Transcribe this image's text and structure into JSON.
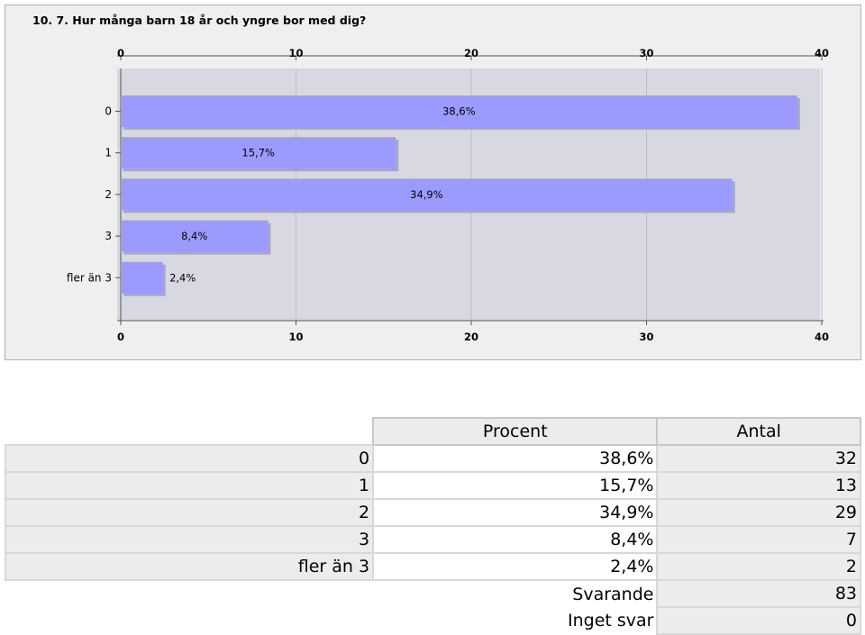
{
  "chart_data": {
    "type": "bar",
    "orientation": "horizontal",
    "title": "10. 7. Hur många barn 18 år och yngre bor med dig?",
    "categories": [
      "0",
      "1",
      "2",
      "3",
      "fler än 3"
    ],
    "values": [
      38.6,
      15.7,
      34.9,
      8.4,
      2.4
    ],
    "data_labels": [
      "38,6%",
      "15,7%",
      "34,9%",
      "8,4%",
      "2,4%"
    ],
    "xlim": [
      0,
      40
    ],
    "xticks": [
      0,
      10,
      20,
      30,
      40
    ],
    "grid": true,
    "bar_color": "#9b9bff",
    "plot_bg": "#d8d8e3"
  },
  "table": {
    "headers": [
      "Procent",
      "Antal"
    ],
    "rows": [
      {
        "label": "0",
        "percent": "38,6%",
        "count": "32"
      },
      {
        "label": "1",
        "percent": "15,7%",
        "count": "13"
      },
      {
        "label": "2",
        "percent": "34,9%",
        "count": "29"
      },
      {
        "label": "3",
        "percent": "8,4%",
        "count": "7"
      },
      {
        "label": "fler än 3",
        "percent": "2,4%",
        "count": "2"
      }
    ],
    "footer": [
      {
        "label": "Svarande",
        "count": "83"
      },
      {
        "label": "Inget svar",
        "count": "0"
      }
    ]
  }
}
